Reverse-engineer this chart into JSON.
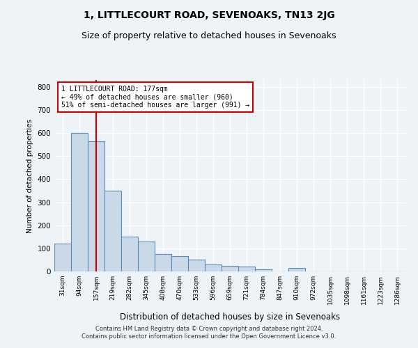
{
  "title": "1, LITTLECOURT ROAD, SEVENOAKS, TN13 2JG",
  "subtitle": "Size of property relative to detached houses in Sevenoaks",
  "xlabel": "Distribution of detached houses by size in Sevenoaks",
  "ylabel": "Number of detached properties",
  "categories": [
    "31sqm",
    "94sqm",
    "157sqm",
    "219sqm",
    "282sqm",
    "345sqm",
    "408sqm",
    "470sqm",
    "533sqm",
    "596sqm",
    "659sqm",
    "721sqm",
    "784sqm",
    "847sqm",
    "910sqm",
    "972sqm",
    "1035sqm",
    "1098sqm",
    "1161sqm",
    "1223sqm",
    "1286sqm"
  ],
  "values": [
    120,
    600,
    565,
    350,
    150,
    130,
    75,
    65,
    50,
    30,
    25,
    20,
    10,
    0,
    15,
    0,
    0,
    0,
    0,
    0,
    0
  ],
  "bar_color": "#c9d9e8",
  "bar_edge_color": "#5b8db8",
  "red_line_x": 2.0,
  "annotation_text": "1 LITTLECOURT ROAD: 177sqm\n← 49% of detached houses are smaller (960)\n51% of semi-detached houses are larger (991) →",
  "annotation_box_color": "#ffffff",
  "annotation_box_edge": "#cc0000",
  "ylim": [
    0,
    830
  ],
  "yticks": [
    0,
    100,
    200,
    300,
    400,
    500,
    600,
    700,
    800
  ],
  "footer1": "Contains HM Land Registry data © Crown copyright and database right 2024.",
  "footer2": "Contains public sector information licensed under the Open Government Licence v3.0.",
  "bg_color": "#eef3f8",
  "grid_color": "#ffffff",
  "title_fontsize": 10,
  "subtitle_fontsize": 9
}
